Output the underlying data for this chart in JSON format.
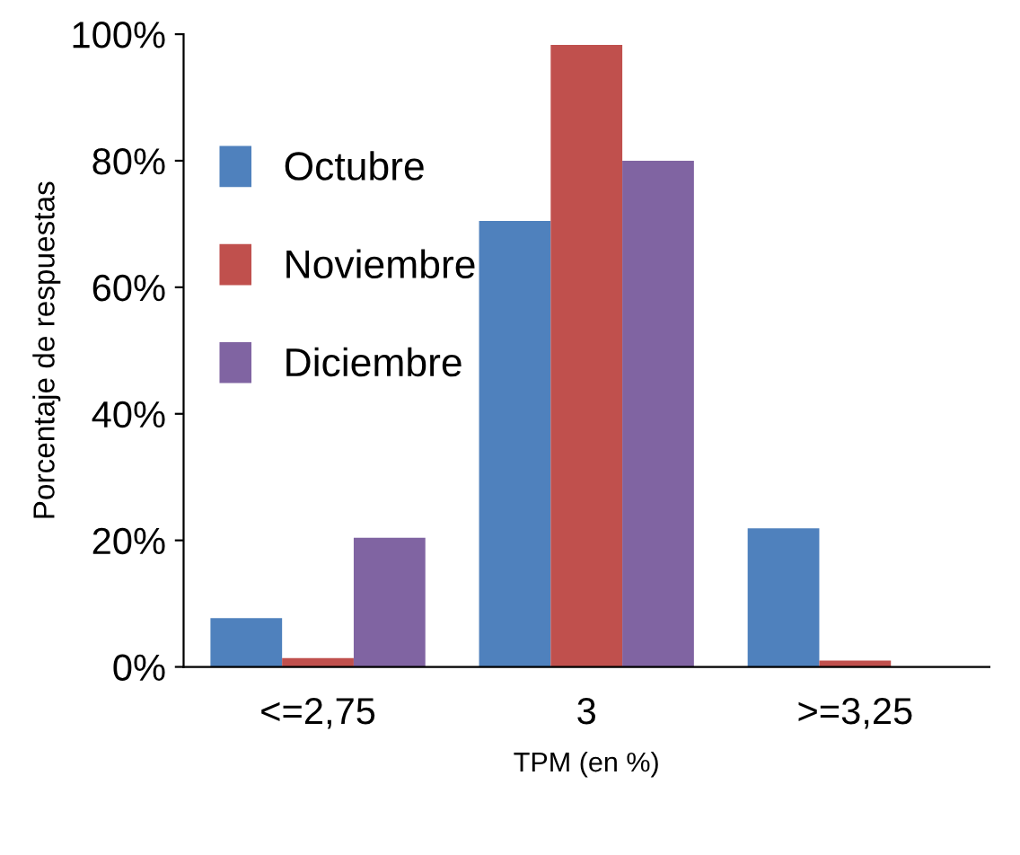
{
  "chart_data": {
    "type": "bar",
    "xlabel": "TPM (en %)",
    "ylabel": "Porcentaje de respuestas",
    "categories": [
      "<=2,75",
      "3",
      ">=3,25"
    ],
    "series": [
      {
        "name": "Octubre",
        "color": "#4f81bd",
        "values": [
          7.7,
          70.5,
          21.9
        ]
      },
      {
        "name": "Noviembre",
        "color": "#c0504d",
        "values": [
          1.4,
          98.3,
          1
        ]
      },
      {
        "name": "Diciembre",
        "color": "#8064a2",
        "values": [
          20.4,
          80,
          0
        ]
      }
    ],
    "ylim": [
      0,
      100
    ],
    "yticks": [
      {
        "value": 0,
        "label": "0%"
      },
      {
        "value": 20,
        "label": "20%"
      },
      {
        "value": 40,
        "label": "40%"
      },
      {
        "value": 60,
        "label": "60%"
      },
      {
        "value": 80,
        "label": "80%"
      },
      {
        "value": 100,
        "label": "100%"
      }
    ],
    "grid": false,
    "legend": "top left"
  }
}
